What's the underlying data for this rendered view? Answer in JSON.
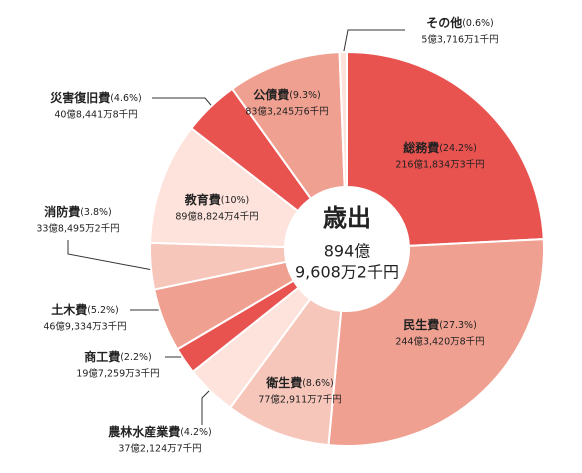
{
  "chart_data": {
    "type": "donut",
    "center_title": "歳出",
    "center_total_line1": "894億",
    "center_total_line2": "9,608万2千円",
    "categories": [
      "総務費",
      "民生費",
      "衛生費",
      "農林水産業費",
      "商工費",
      "土木費",
      "消防費",
      "教育費",
      "災害復旧費",
      "公債費",
      "その他"
    ],
    "values": [
      24.2,
      27.3,
      8.6,
      4.2,
      2.2,
      5.2,
      3.8,
      10,
      4.6,
      9.3,
      0.6
    ],
    "value_labels": [
      "(24.2%)",
      "(27.3%)",
      "(8.6%)",
      "(4.2%)",
      "(2.2%)",
      "(5.2%)",
      "(3.8%)",
      "(10%)",
      "(4.6%)",
      "(9.3%)",
      "(0.6%)"
    ],
    "amounts": [
      "216億1,834万3千円",
      "244億3,420万8千円",
      "77億2,911万7千円",
      "37億2,124万7千円",
      "19億7,259万3千円",
      "46億9,334万3千円",
      "33億8,495万2千円",
      "89億8,824万4千円",
      "40億8,441万8千円",
      "83億3,245万6千円",
      "5億3,716万1千円"
    ],
    "colors": [
      "#e8524f",
      "#f0a090",
      "#f6c6ba",
      "#fde3db",
      "#e8524f",
      "#f0a090",
      "#f6c6ba",
      "#fde3db",
      "#e8524f",
      "#f0a090",
      "#fde3db"
    ]
  }
}
